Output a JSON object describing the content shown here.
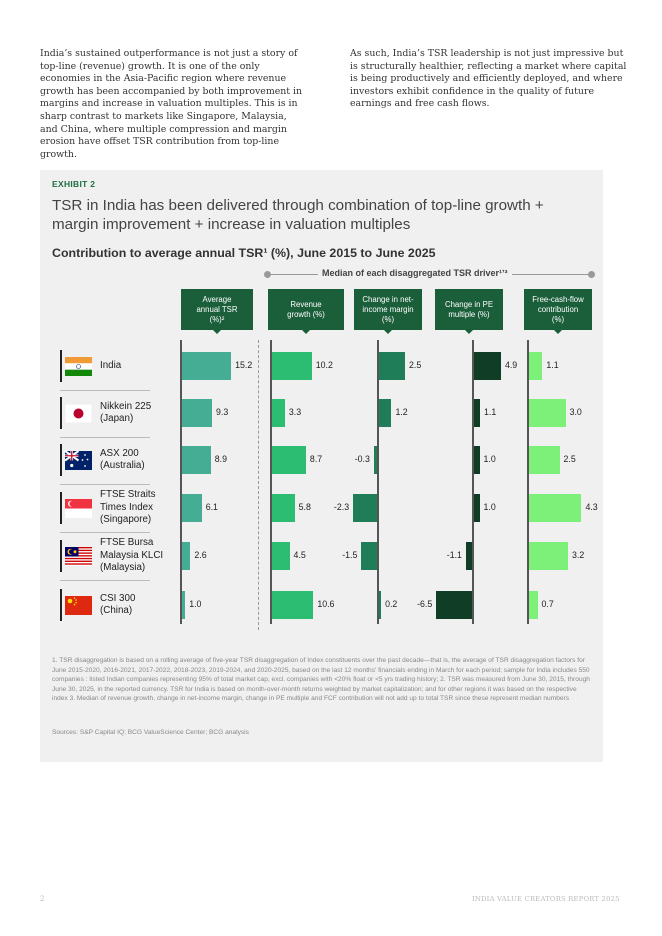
{
  "intro": {
    "left": "India’s sustained outperformance is not just a story of top-line (revenue) growth. It is one of the only economies in the Asia-Pacific region where revenue growth has been accompanied by both improvement in margins and increase in valuation multiples. This is in sharp contrast to markets like Singapore, Malaysia, and China, where multiple compression and margin erosion have offset TSR contribution from top-line growth.",
    "right": "As such, India’s TSR leadership is not just impressive but is structurally healthier, reflecting a market where capital is being productively and efficiently deployed, and where investors exhibit confidence in the quality of future earnings and free cash flows."
  },
  "exhibit": {
    "label": "EXHIBIT 2",
    "title": "TSR in India has been delivered through combination of top-line growth + margin improvement + increase in valuation multiples",
    "subtitle": "Contribution to average annual TSR¹ (%), June 2015 to June 2025",
    "median_label": "Median of each disaggregated TSR driver¹ʼ³",
    "footnote": "1. TSR disaggregation is based on a rolling average of five-year TSR disaggregation of Index constituents over the past decade—that is, the average of TSR disaggregation factors for June 2015-2020, 2016-2021, 2017-2022, 2018-2023, 2019-2024, and 2020-2025, based on the last 12 months' financials ending in March for each period; sample for India includes 550 companies : listed Indian companies representing 95% of total market cap, excl. companies with <20% float or <5 yrs trading history; 2. TSR was measured from June 30, 2015, through June 30, 2025, in the reported currency. TSR for India is based on month-over-month returns weighted by market capitalization; and for other regions it was based on the respective index 3. Median of revenue growth, change in net-income margin, change in PE multiple and FCF contribution will not add up to total TSR since these represent median numbers",
    "sources": "Sources: S&P Capital IQ; BCG ValueScience Center; BCG analysis"
  },
  "chart_data": {
    "type": "bar",
    "title": "Contribution to average annual TSR¹ (%), June 2015 to June 2025",
    "categories": [
      [
        "India"
      ],
      [
        "Nikkein 225",
        "(Japan)"
      ],
      [
        "ASX 200",
        "(Australia)"
      ],
      [
        "FTSE Straits",
        "Times Index",
        "(Singapore)"
      ],
      [
        "FTSE Bursa",
        "Malaysia KLCI",
        "(Malaysia)"
      ],
      [
        "CSI 300",
        "(China)"
      ]
    ],
    "columns": [
      {
        "header": "Average annual TSR (%)²",
        "headerLines": [
          "Average",
          "annual TSR",
          "(%)²"
        ],
        "color": "#45ad93",
        "values": [
          15.2,
          9.3,
          8.9,
          6.1,
          2.6,
          1.0
        ],
        "labels": [
          "15.2",
          "9.3",
          "8.9",
          "6.1",
          "2.6",
          "1.0"
        ]
      },
      {
        "header": "Revenue growth (%)",
        "headerLines": [
          "Revenue",
          "growth (%)"
        ],
        "color": "#2dbd72",
        "values": [
          10.2,
          3.3,
          8.7,
          5.8,
          4.5,
          10.6
        ],
        "labels": [
          "10.2",
          "3.3",
          "8.7",
          "5.8",
          "4.5",
          "10.6"
        ]
      },
      {
        "header": "Change in net-income margin (%)",
        "headerLines": [
          "Change in net-",
          "income margin",
          "(%)"
        ],
        "color": "#1f7e58",
        "values": [
          2.5,
          1.2,
          -0.3,
          -2.3,
          -1.5,
          0.2
        ],
        "labels": [
          "2.5",
          "1.2",
          "-0.3",
          "-2.3",
          "-1.5",
          "0.2"
        ]
      },
      {
        "header": "Change in PE multiple (%)",
        "headerLines": [
          "Change in PE",
          "multiple (%)"
        ],
        "color": "#0f3d26",
        "values": [
          4.9,
          1.1,
          1.0,
          1.0,
          -1.1,
          -6.5
        ],
        "labels": [
          "4.9",
          "1.1",
          "1.0",
          "1.0",
          "-1.1",
          "-6.5"
        ]
      },
      {
        "header": "Free-cash-flow contribution (%)",
        "headerLines": [
          "Free-cash-flow",
          "contribution",
          "(%)"
        ],
        "color": "#7df07a",
        "values": [
          1.1,
          3.0,
          2.5,
          4.3,
          3.2,
          0.7
        ],
        "labels": [
          "1.1",
          "3.0",
          "2.5",
          "4.3",
          "3.2",
          "0.7"
        ]
      }
    ]
  },
  "footer": {
    "page": "2",
    "report": "INDIA VALUE CREATORS REPORT 2025"
  }
}
